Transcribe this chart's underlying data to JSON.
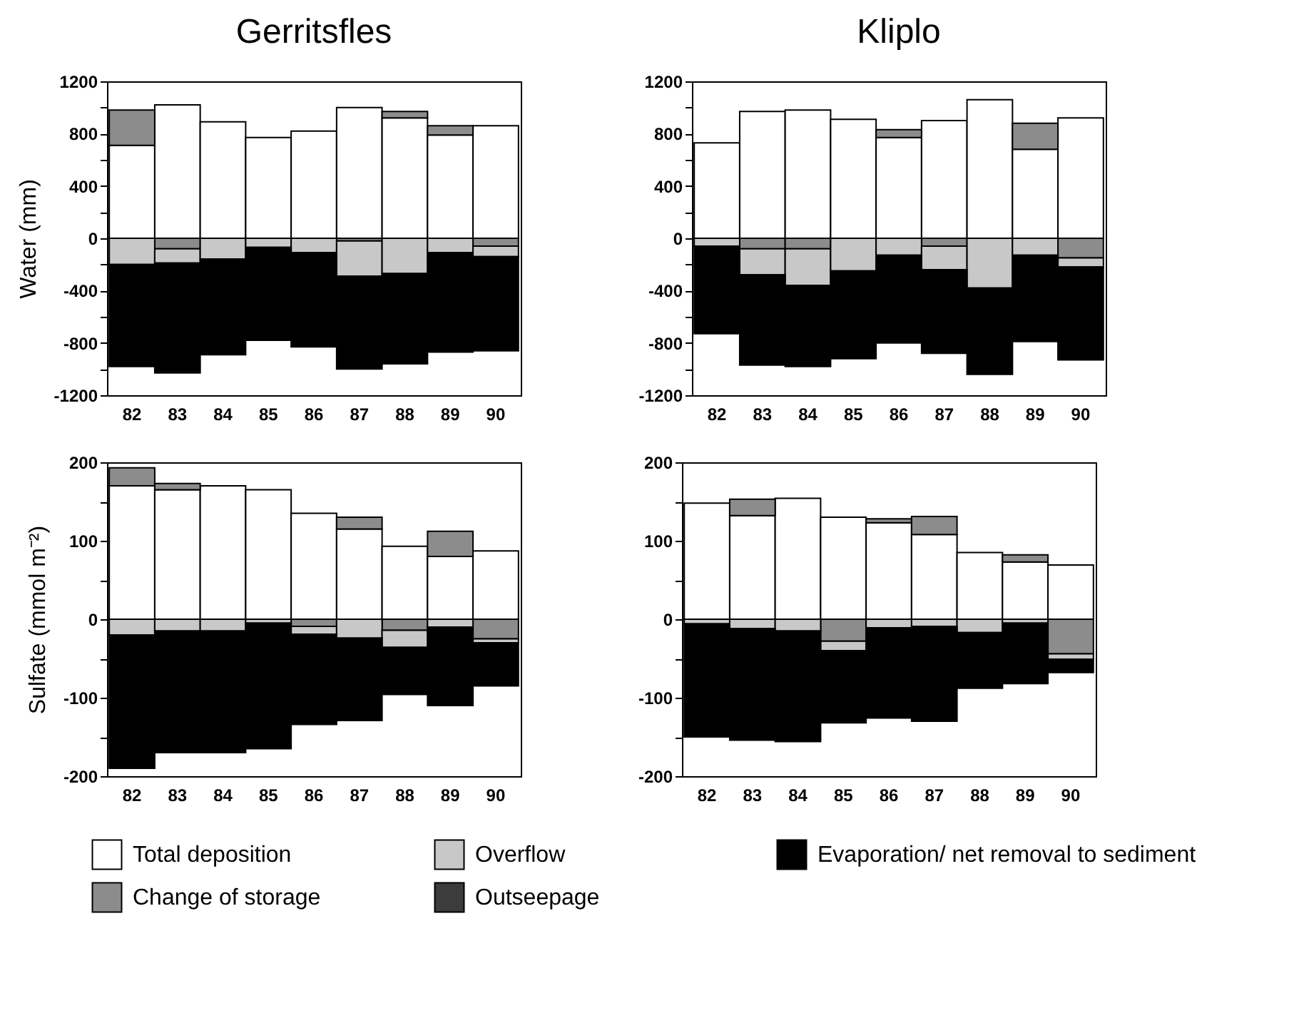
{
  "chart_data": [
    {
      "type": "bar",
      "title": "Gerritsfles",
      "ylabel": "Water (mm)",
      "stacked": true,
      "legend": "bottom",
      "categories": [
        "82",
        "83",
        "84",
        "85",
        "86",
        "87",
        "88",
        "89",
        "90"
      ],
      "ylim": [
        -1200,
        1200
      ],
      "yticks": [
        -1200,
        {
          "value": -1000,
          "label": null
        },
        -800,
        {
          "value": -600,
          "label": null
        },
        -400,
        {
          "value": -200,
          "label": null
        },
        0,
        {
          "value": 200,
          "label": null
        },
        400,
        {
          "value": 600,
          "label": null
        },
        800,
        {
          "value": 1000,
          "label": null
        },
        1200
      ],
      "series": [
        {
          "name": "Total deposition",
          "color": "#ffffff",
          "values": [
            710,
            1020,
            890,
            770,
            820,
            1000,
            920,
            790,
            860
          ]
        },
        {
          "name": "Change of storage",
          "color": "#8c8c8c",
          "values": [
            270,
            -80,
            null,
            null,
            null,
            -20,
            50,
            70,
            -60
          ]
        },
        {
          "name": "Overflow",
          "color": "#c8c8c8",
          "values": [
            -200,
            -110,
            -160,
            -70,
            -110,
            -270,
            -270,
            -110,
            -80
          ]
        },
        {
          "name": "Outseepage",
          "color": "#3c3c3c",
          "values": [
            null,
            null,
            null,
            null,
            null,
            null,
            null,
            null,
            null
          ]
        },
        {
          "name": "Evaporation/ net removal to sediment",
          "color": "#000000",
          "values": [
            -780,
            -840,
            -730,
            -710,
            -720,
            -710,
            -690,
            -760,
            -720
          ]
        }
      ]
    },
    {
      "type": "bar",
      "title": "Kliplo",
      "stacked": true,
      "categories": [
        "82",
        "83",
        "84",
        "85",
        "86",
        "87",
        "88",
        "89",
        "90"
      ],
      "ylim": [
        -1200,
        1200
      ],
      "yticks": [
        -1200,
        {
          "value": -1000,
          "label": null
        },
        -800,
        {
          "value": -600,
          "label": null
        },
        -400,
        {
          "value": -200,
          "label": null
        },
        0,
        {
          "value": 200,
          "label": null
        },
        400,
        {
          "value": 600,
          "label": null
        },
        800,
        {
          "value": 1000,
          "label": null
        },
        1200
      ],
      "series": [
        {
          "color": "#ffffff",
          "values": [
            730,
            970,
            980,
            910,
            770,
            900,
            1060,
            680,
            920
          ]
        },
        {
          "color": "#8c8c8c",
          "values": [
            null,
            -80,
            -80,
            null,
            60,
            -60,
            null,
            200,
            -150
          ]
        },
        {
          "color": "#c8c8c8",
          "values": [
            -60,
            -200,
            -280,
            -250,
            -130,
            -180,
            -380,
            -130,
            -70
          ]
        },
        {
          "color": "#000000",
          "values": [
            -670,
            -690,
            -620,
            -670,
            -670,
            -640,
            -660,
            -660,
            -710
          ]
        }
      ]
    },
    {
      "type": "bar",
      "ylabel": "Sulfate (mmol m⁻²)",
      "stacked": true,
      "categories": [
        "82",
        "83",
        "84",
        "85",
        "86",
        "87",
        "88",
        "89",
        "90"
      ],
      "ylim": [
        -200,
        200
      ],
      "yticks": [
        -200,
        {
          "value": -150,
          "label": null
        },
        -100,
        {
          "value": -50,
          "label": null
        },
        0,
        {
          "value": 50,
          "label": null
        },
        100,
        {
          "value": 150,
          "label": null
        },
        200
      ],
      "series": [
        {
          "color": "#ffffff",
          "values": [
            170,
            165,
            170,
            165,
            135,
            115,
            93,
            80,
            87
          ]
        },
        {
          "color": "#8c8c8c",
          "values": [
            23,
            8,
            null,
            null,
            -9,
            15,
            -14,
            32,
            -25
          ]
        },
        {
          "color": "#c8c8c8",
          "values": [
            -20,
            -15,
            -15,
            -5,
            -10,
            -24,
            -22,
            -10,
            -5
          ]
        },
        {
          "color": "#000000",
          "values": [
            -170,
            -155,
            -155,
            -160,
            -115,
            -105,
            -60,
            -100,
            -55
          ]
        }
      ]
    },
    {
      "type": "bar",
      "stacked": true,
      "categories": [
        "82",
        "83",
        "84",
        "85",
        "86",
        "87",
        "88",
        "89",
        "90"
      ],
      "ylim": [
        -200,
        200
      ],
      "yticks": [
        -200,
        {
          "value": -150,
          "label": null
        },
        -100,
        {
          "value": -50,
          "label": null
        },
        0,
        {
          "value": 50,
          "label": null
        },
        100,
        {
          "value": 150,
          "label": null
        },
        200
      ],
      "series": [
        {
          "color": "#ffffff",
          "values": [
            148,
            132,
            154,
            130,
            123,
            108,
            85,
            73,
            69
          ]
        },
        {
          "color": "#8c8c8c",
          "values": [
            null,
            21,
            null,
            -28,
            5,
            23,
            null,
            9,
            -44
          ]
        },
        {
          "color": "#c8c8c8",
          "values": [
            -6,
            -12,
            -15,
            -12,
            -11,
            -9,
            -17,
            -5,
            -7
          ]
        },
        {
          "color": "#000000",
          "values": [
            -144,
            -142,
            -141,
            -92,
            -115,
            -121,
            -71,
            -77,
            -17
          ]
        }
      ]
    }
  ]
}
